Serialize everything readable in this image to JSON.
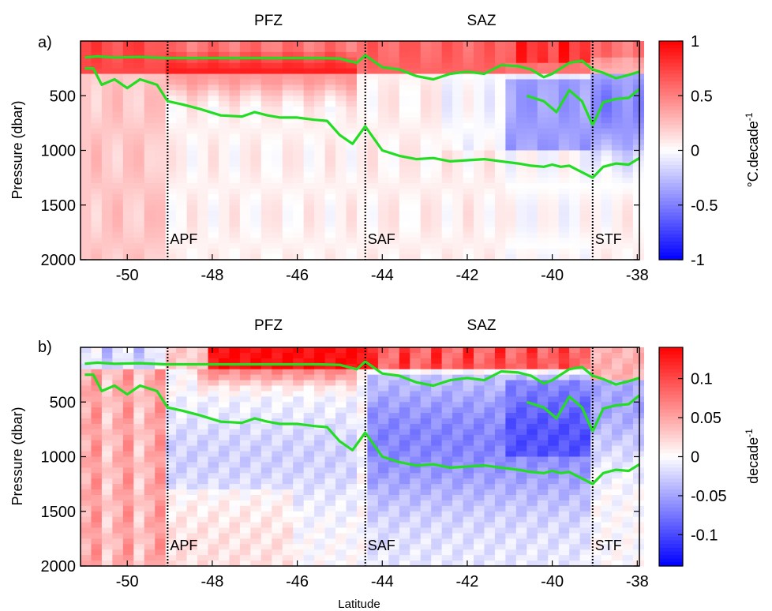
{
  "colors": {
    "warm": "#ff0000",
    "cold": "#0000ff",
    "neutral": "#ffffff",
    "contour": "#22dd22",
    "front": "#000000"
  },
  "figure": {
    "xlabel": "Latitude"
  },
  "chart_data": [
    {
      "type": "heatmap",
      "panel_label": "a)",
      "zones": [
        {
          "name": "PFZ",
          "x": -47.3
        },
        {
          "name": "SAZ",
          "x": -42.3
        }
      ],
      "fronts": [
        {
          "name": "APF",
          "x": -49.05
        },
        {
          "name": "SAF",
          "x": -44.4
        },
        {
          "name": "STF",
          "x": -39.05
        }
      ],
      "ylabel": "Pressure (dbar)",
      "xlim": [
        -51.1,
        -37.95
      ],
      "ylim": [
        2000,
        0
      ],
      "xticks": [
        -50,
        -48,
        -46,
        -44,
        -42,
        -40,
        -38
      ],
      "yticks": [
        500,
        1000,
        1500,
        2000
      ],
      "colorbar": {
        "label": "°C.decade",
        "label_superscript": "-1",
        "min": -1,
        "max": 1,
        "ticks": [
          1,
          0.5,
          0,
          -0.5,
          -1
        ]
      },
      "contours": [
        {
          "x": [
            -51.0,
            -50.7,
            -50.3,
            -49.7,
            -49.1,
            -48.5,
            -48.0,
            -47.5,
            -47.0,
            -46.5,
            -46.0,
            -45.5,
            -45.0,
            -44.6,
            -44.4,
            -44.0,
            -43.6,
            -43.2,
            -42.8,
            -42.4,
            -42.0,
            -41.6,
            -41.2,
            -40.8,
            -40.5,
            -40.2,
            -40.0,
            -39.8,
            -39.6,
            -39.3,
            -39.05,
            -38.8,
            -38.5,
            -38.2,
            -37.95
          ],
          "y": [
            150,
            140,
            150,
            145,
            155,
            155,
            155,
            155,
            155,
            155,
            155,
            155,
            160,
            200,
            130,
            240,
            260,
            320,
            350,
            300,
            280,
            300,
            220,
            230,
            260,
            330,
            300,
            250,
            200,
            180,
            260,
            290,
            340,
            310,
            280
          ]
        },
        {
          "x": [
            -51.0,
            -50.8,
            -50.6,
            -50.3,
            -50.0,
            -49.7,
            -49.3,
            -49.05,
            -48.7,
            -48.3,
            -47.8,
            -47.3,
            -47.0,
            -46.7,
            -46.4,
            -46.0,
            -45.6,
            -45.3,
            -45.0,
            -44.7,
            -44.4,
            -44.0,
            -43.6,
            -43.2,
            -42.8,
            -42.4,
            -42.0,
            -41.6,
            -41.2,
            -40.8,
            -40.5,
            -40.2,
            -40.0,
            -39.8,
            -39.6,
            -39.3,
            -39.05,
            -38.8,
            -38.5,
            -38.2,
            -37.95
          ],
          "y": [
            250,
            250,
            400,
            350,
            430,
            350,
            400,
            550,
            580,
            620,
            680,
            690,
            650,
            680,
            700,
            700,
            720,
            730,
            860,
            940,
            780,
            1000,
            1050,
            1080,
            1070,
            1100,
            1090,
            1080,
            1100,
            1120,
            1140,
            1150,
            1130,
            1150,
            1140,
            1200,
            1250,
            1150,
            1120,
            1130,
            1070
          ]
        },
        {
          "x": [
            -39.05,
            -38.8,
            -38.5,
            -38.2,
            -37.95
          ],
          "y": [
            770,
            560,
            530,
            520,
            440
          ]
        },
        {
          "x": [
            -40.6,
            -40.2,
            -39.9,
            -39.6,
            -39.3,
            -39.05
          ],
          "y": [
            500,
            550,
            650,
            450,
            550,
            770
          ]
        }
      ]
    },
    {
      "type": "heatmap",
      "panel_label": "b)",
      "zones": [
        {
          "name": "PFZ",
          "x": -47.3
        },
        {
          "name": "SAZ",
          "x": -42.3
        }
      ],
      "fronts": [
        {
          "name": "APF",
          "x": -49.05
        },
        {
          "name": "SAF",
          "x": -44.4
        },
        {
          "name": "STF",
          "x": -39.05
        }
      ],
      "ylabel": "Pressure (dbar)",
      "xlim": [
        -51.1,
        -37.95
      ],
      "ylim": [
        2000,
        0
      ],
      "xticks": [
        -50,
        -48,
        -46,
        -44,
        -42,
        -40,
        -38
      ],
      "yticks": [
        500,
        1000,
        1500,
        2000
      ],
      "colorbar": {
        "label": "decade",
        "label_superscript": "-1",
        "min": -0.14,
        "max": 0.14,
        "ticks": [
          0.1,
          0.05,
          0,
          -0.05,
          -0.1
        ]
      },
      "contours": [
        {
          "x": [
            -51.0,
            -50.7,
            -50.3,
            -49.7,
            -49.1,
            -48.5,
            -48.0,
            -47.5,
            -47.0,
            -46.5,
            -46.0,
            -45.5,
            -45.0,
            -44.6,
            -44.4,
            -44.0,
            -43.6,
            -43.2,
            -42.8,
            -42.4,
            -42.0,
            -41.6,
            -41.2,
            -40.8,
            -40.5,
            -40.2,
            -40.0,
            -39.8,
            -39.6,
            -39.3,
            -39.05,
            -38.8,
            -38.5,
            -38.2,
            -37.95
          ],
          "y": [
            150,
            140,
            150,
            145,
            155,
            155,
            155,
            155,
            155,
            155,
            155,
            155,
            160,
            200,
            130,
            240,
            260,
            320,
            350,
            300,
            280,
            300,
            220,
            230,
            260,
            330,
            300,
            250,
            200,
            180,
            260,
            290,
            340,
            310,
            280
          ]
        },
        {
          "x": [
            -51.0,
            -50.8,
            -50.6,
            -50.3,
            -50.0,
            -49.7,
            -49.3,
            -49.05,
            -48.7,
            -48.3,
            -47.8,
            -47.3,
            -47.0,
            -46.7,
            -46.4,
            -46.0,
            -45.6,
            -45.3,
            -45.0,
            -44.7,
            -44.4,
            -44.0,
            -43.6,
            -43.2,
            -42.8,
            -42.4,
            -42.0,
            -41.6,
            -41.2,
            -40.8,
            -40.5,
            -40.2,
            -40.0,
            -39.8,
            -39.6,
            -39.3,
            -39.05,
            -38.8,
            -38.5,
            -38.2,
            -37.95
          ],
          "y": [
            250,
            250,
            400,
            350,
            430,
            350,
            400,
            550,
            580,
            620,
            680,
            690,
            650,
            680,
            700,
            700,
            720,
            730,
            860,
            940,
            780,
            1000,
            1050,
            1080,
            1070,
            1100,
            1090,
            1080,
            1100,
            1120,
            1140,
            1150,
            1130,
            1150,
            1140,
            1200,
            1250,
            1150,
            1120,
            1130,
            1070
          ]
        },
        {
          "x": [
            -39.05,
            -38.8,
            -38.5,
            -38.2,
            -37.95
          ],
          "y": [
            770,
            560,
            530,
            520,
            440
          ]
        },
        {
          "x": [
            -40.6,
            -40.2,
            -39.9,
            -39.6,
            -39.3,
            -39.05
          ],
          "y": [
            500,
            550,
            650,
            450,
            550,
            770
          ]
        }
      ]
    }
  ]
}
